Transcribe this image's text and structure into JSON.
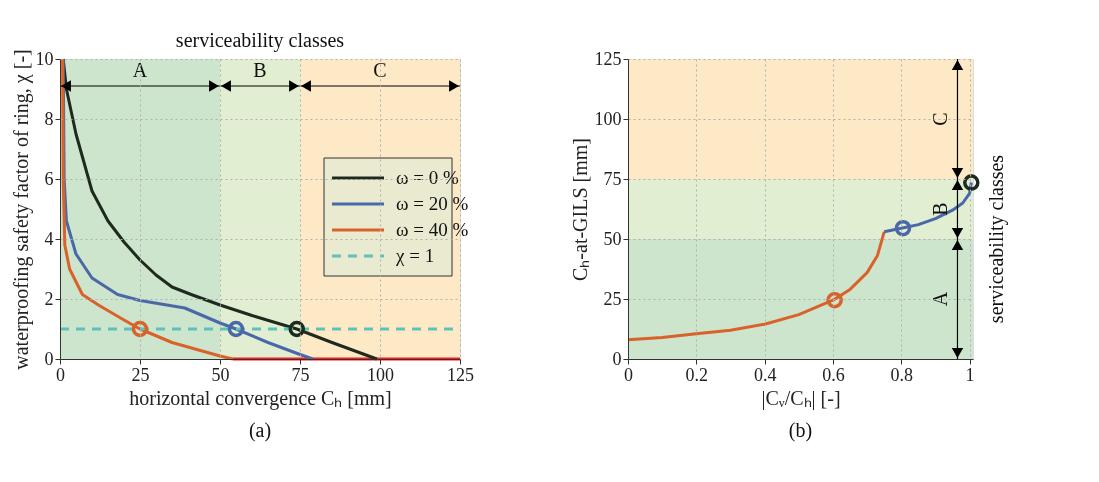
{
  "chart_data": [
    {
      "type": "line",
      "xlabel": "horizontal convergence Cₕ [mm]",
      "ylabel": "waterproofing safety factor of ring, χ [-]",
      "xlim": [
        0,
        125
      ],
      "xticks": [
        0,
        25,
        50,
        75,
        100,
        125
      ],
      "ylim": [
        0,
        10
      ],
      "yticks": [
        0,
        2,
        4,
        6,
        8,
        10
      ],
      "grid": true,
      "legend": "right",
      "series": [
        {
          "name": "ω = 0 %",
          "type": "line",
          "color": "#1f2a1f",
          "line_style": "solid",
          "x": [
            1,
            2,
            5,
            10,
            15,
            20,
            25,
            30,
            35,
            41,
            50,
            60,
            74,
            85,
            99
          ],
          "values": [
            10,
            9,
            7.5,
            5.6,
            4.6,
            3.9,
            3.3,
            2.8,
            2.4,
            2.15,
            1.8,
            1.45,
            1,
            0.55,
            0
          ]
        },
        {
          "name": "ω = 20 %",
          "type": "line",
          "color": "#4a68a8",
          "line_style": "solid",
          "x": [
            1,
            1.3,
            2,
            5,
            10,
            18,
            25,
            39,
            50,
            55,
            65,
            75,
            79
          ],
          "values": [
            10,
            6,
            4.6,
            3.5,
            2.7,
            2.15,
            1.95,
            1.7,
            1.2,
            1,
            0.55,
            0.15,
            0
          ]
        },
        {
          "name": "ω = 40 %",
          "type": "line",
          "color": "#d9622b",
          "line_style": "solid",
          "x": [
            0.8,
            1,
            1.5,
            3,
            7,
            12,
            20,
            25,
            35,
            45,
            50,
            54
          ],
          "values": [
            10,
            6,
            3.8,
            3,
            2.15,
            1.8,
            1.3,
            1,
            0.55,
            0.25,
            0.1,
            0
          ]
        },
        {
          "name": "χ = 1",
          "type": "line",
          "color": "#5bc3b8",
          "line_style": "dashed",
          "x": [
            0,
            125
          ],
          "values": [
            1,
            1
          ]
        },
        {
          "type": "line",
          "color": "#ff1a1a",
          "line_style": "solid",
          "x": [
            54,
            125
          ],
          "values": [
            0,
            0
          ]
        },
        {
          "type": "scatter",
          "marker": "circle",
          "color": "#d9622b",
          "x": [
            25
          ],
          "values": [
            1
          ]
        },
        {
          "type": "scatter",
          "marker": "circle",
          "color": "#4a68a8",
          "x": [
            55
          ],
          "values": [
            1
          ]
        },
        {
          "type": "scatter",
          "marker": "circle",
          "color": "#1f2a1f",
          "x": [
            74
          ],
          "values": [
            1
          ]
        }
      ],
      "bands": [
        {
          "axis": "x",
          "from": 0,
          "to": 50,
          "label": "A",
          "color": "#cde5cc"
        },
        {
          "axis": "x",
          "from": 50,
          "to": 75,
          "label": "B",
          "color": "#e2eed2"
        },
        {
          "axis": "x",
          "from": 75,
          "to": 125,
          "label": "C",
          "color": "#fde9c6"
        }
      ],
      "annotations": [
        "serviceability classes",
        "(a)"
      ]
    },
    {
      "type": "line",
      "xlabel": "|Cᵥ/Cₕ| [-]",
      "ylabel": "Cₕ-at-GILS [mm]",
      "xlim": [
        0,
        1.01
      ],
      "xticks": [
        0,
        0.2,
        0.4,
        0.6,
        0.8,
        1
      ],
      "ylim": [
        0,
        125
      ],
      "yticks": [
        0,
        25,
        50,
        75,
        100,
        125
      ],
      "grid": true,
      "series": [
        {
          "type": "line",
          "color": "#d9622b",
          "line_style": "solid",
          "x": [
            0,
            0.1,
            0.2,
            0.3,
            0.4,
            0.5,
            0.55,
            0.6,
            0.65,
            0.7,
            0.73,
            0.75
          ],
          "values": [
            8,
            9,
            10.5,
            12,
            14.5,
            18.5,
            21.5,
            24.5,
            29,
            36,
            43,
            53
          ]
        },
        {
          "type": "line",
          "color": "#4a68a8",
          "line_style": "solid",
          "x": [
            0.75,
            0.8,
            0.85,
            0.9,
            0.95,
            0.98,
            1,
            1.005
          ],
          "values": [
            53,
            54.5,
            56,
            58.5,
            62,
            65,
            69,
            73.5
          ]
        },
        {
          "type": "scatter",
          "marker": "circle",
          "color": "#d9622b",
          "x": [
            0.605
          ],
          "values": [
            24.5
          ]
        },
        {
          "type": "scatter",
          "marker": "circle",
          "color": "#4a68a8",
          "x": [
            0.805
          ],
          "values": [
            54.5
          ]
        },
        {
          "type": "scatter",
          "marker": "circle",
          "color": "#1f2a1f",
          "x": [
            1.005
          ],
          "values": [
            73.5
          ]
        }
      ],
      "bands": [
        {
          "axis": "y",
          "from": 0,
          "to": 50,
          "label": "A",
          "color": "#cde5cc"
        },
        {
          "axis": "y",
          "from": 50,
          "to": 75,
          "label": "B",
          "color": "#e2eed2"
        },
        {
          "axis": "y",
          "from": 75,
          "to": 125,
          "label": "C",
          "color": "#fde9c6"
        }
      ],
      "annotations": [
        "serviceability classes",
        "(b)"
      ]
    }
  ]
}
